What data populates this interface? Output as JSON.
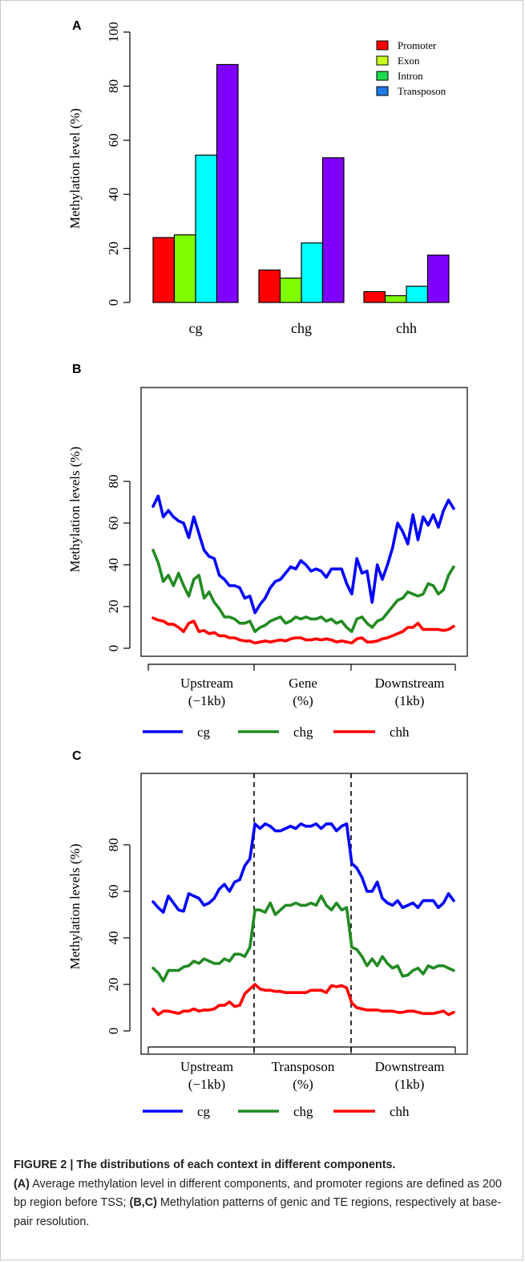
{
  "figure": {
    "caption_title": "FIGURE 2 | The distributions of each context in different components.",
    "caption_parts": [
      {
        "text": "(A)",
        "bold": true
      },
      {
        "text": " Average methylation level in different components, and promoter regions are defined as 200 bp region before TSS; ",
        "bold": false
      },
      {
        "text": "(B,C)",
        "bold": true
      },
      {
        "text": " Methylation patterns of genic and TE regions, respectively at base-pair resolution.",
        "bold": false
      }
    ]
  },
  "chart_data": [
    {
      "panel": "A",
      "type": "bar",
      "ylabel": "Methylation level (%)",
      "ylim": [
        0,
        100
      ],
      "yticks": [
        0,
        20,
        40,
        60,
        80,
        100
      ],
      "categories": [
        "cg",
        "chg",
        "chh"
      ],
      "legend_position": "top-right",
      "series": [
        {
          "name": "Promoter",
          "color": "#ff0000",
          "values": [
            24,
            12,
            4
          ]
        },
        {
          "name": "Exon",
          "color": "#80ff00",
          "values": [
            25,
            9,
            2.5
          ]
        },
        {
          "name": "Intron",
          "color": "#00ffff",
          "values": [
            54.5,
            22,
            6
          ]
        },
        {
          "name": "Transposon",
          "color": "#8000ff",
          "values": [
            88,
            53.5,
            17.5
          ]
        }
      ],
      "legend_colors": [
        "#ff0000",
        "#c8ff1e",
        "#1edc50",
        "#1e78e6"
      ]
    },
    {
      "panel": "B",
      "type": "line",
      "ylabel": "Methylation levels (%)",
      "ylim": [
        0,
        80
      ],
      "yticks": [
        0,
        20,
        40,
        60,
        80
      ],
      "region_labels": [
        [
          "Upstream",
          "(−1kb)"
        ],
        [
          "Gene",
          "(%)"
        ],
        [
          "Downstream",
          "(1kb)"
        ]
      ],
      "boundary_dashed": false,
      "series": [
        {
          "name": "cg",
          "color": "#0000ff",
          "values": [
            68,
            73,
            63,
            66,
            63,
            61,
            60,
            53,
            63,
            55,
            47,
            44,
            43,
            35,
            33,
            30,
            30,
            29,
            24,
            25,
            17,
            21,
            24,
            29,
            32,
            33,
            36,
            39,
            38,
            42,
            40,
            37,
            38,
            37,
            34,
            38,
            38,
            38,
            31,
            26,
            43,
            36,
            37,
            22,
            40,
            33,
            40,
            48,
            60,
            56,
            50,
            64,
            52,
            63,
            59,
            64,
            58,
            66,
            71,
            67
          ]
        },
        {
          "name": "chg",
          "color": "#228b22",
          "values": [
            47,
            41,
            32,
            35,
            30,
            36,
            30,
            25,
            33,
            35,
            24,
            27,
            22,
            19,
            15,
            15,
            14,
            12,
            12,
            13,
            8,
            10,
            11,
            13,
            14,
            15,
            12,
            13,
            15,
            14,
            15,
            14,
            14,
            15,
            13,
            14,
            12,
            13,
            10,
            8,
            14,
            15,
            12,
            10,
            13,
            14,
            17,
            20,
            23,
            24,
            27,
            26,
            25,
            26,
            31,
            30,
            26,
            28,
            35,
            39
          ]
        },
        {
          "name": "chh",
          "color": "#ff0000",
          "values": [
            14.5,
            13.5,
            13,
            11.5,
            11.5,
            10,
            8,
            12,
            13,
            8,
            8.5,
            7,
            7.5,
            6,
            6,
            5,
            5,
            4,
            3.5,
            3.5,
            2.5,
            3,
            3.5,
            3,
            3.5,
            4,
            3.5,
            4.5,
            5,
            5,
            4,
            4,
            4.5,
            4,
            4.5,
            4,
            3,
            3.5,
            3,
            2.5,
            4.5,
            5,
            3,
            3,
            3.5,
            4.5,
            5,
            6,
            7,
            8,
            10,
            10,
            12,
            9,
            9,
            9,
            9,
            8.5,
            9,
            10.5
          ]
        }
      ]
    },
    {
      "panel": "C",
      "type": "line",
      "ylabel": "Methylation levels (%)",
      "ylim": [
        0,
        90
      ],
      "yticks": [
        0,
        20,
        40,
        60,
        80
      ],
      "region_labels": [
        [
          "Upstream",
          "(−1kb)"
        ],
        [
          "Transposon",
          "(%)"
        ],
        [
          "Downstream",
          "(1kb)"
        ]
      ],
      "boundary_dashed": true,
      "series": [
        {
          "name": "cg",
          "color": "#0000ff",
          "values": [
            55.5,
            53,
            51,
            58,
            55,
            52,
            51.5,
            59,
            58,
            57,
            54,
            55,
            57,
            61,
            63,
            60,
            64,
            65,
            71,
            74,
            89,
            87,
            89,
            88,
            86,
            86,
            87,
            88,
            87,
            89,
            88,
            88,
            89,
            87,
            89,
            89,
            86,
            88,
            89,
            72,
            70,
            66,
            60,
            60,
            64,
            57,
            55,
            54,
            56,
            53,
            54,
            55,
            53,
            56,
            56,
            56,
            53,
            55,
            59,
            56
          ]
        },
        {
          "name": "chg",
          "color": "#228b22",
          "values": [
            27,
            25,
            21.5,
            26,
            26,
            26,
            27.5,
            28,
            30,
            29,
            31,
            30,
            29,
            29,
            31,
            30,
            33,
            33,
            32,
            36,
            52,
            52,
            51,
            55,
            50,
            52,
            54,
            54,
            55,
            54,
            54,
            55,
            54,
            58,
            54,
            52,
            55,
            52,
            53,
            36,
            35,
            32,
            28,
            31,
            28,
            32,
            29,
            27,
            28,
            23.5,
            24,
            26,
            27,
            24.5,
            28,
            27,
            28,
            28,
            27,
            26
          ]
        },
        {
          "name": "chh",
          "color": "#ff0000",
          "values": [
            9.5,
            7,
            8.5,
            8.5,
            8,
            7.5,
            8.5,
            8.5,
            9.5,
            8.5,
            9,
            9,
            9.5,
            11,
            11,
            12.5,
            10.5,
            11,
            16,
            18,
            20,
            18,
            17.5,
            17.5,
            17,
            17,
            16.5,
            16.5,
            16.5,
            16.5,
            16.5,
            17.5,
            17.5,
            17.5,
            16.5,
            19.5,
            19,
            19.5,
            18.5,
            12,
            10,
            9.5,
            9,
            9,
            9,
            8.5,
            8.5,
            8.5,
            8,
            8,
            8.5,
            8.5,
            8,
            7.5,
            7.5,
            7.5,
            8,
            8.5,
            7,
            8
          ]
        }
      ]
    }
  ]
}
